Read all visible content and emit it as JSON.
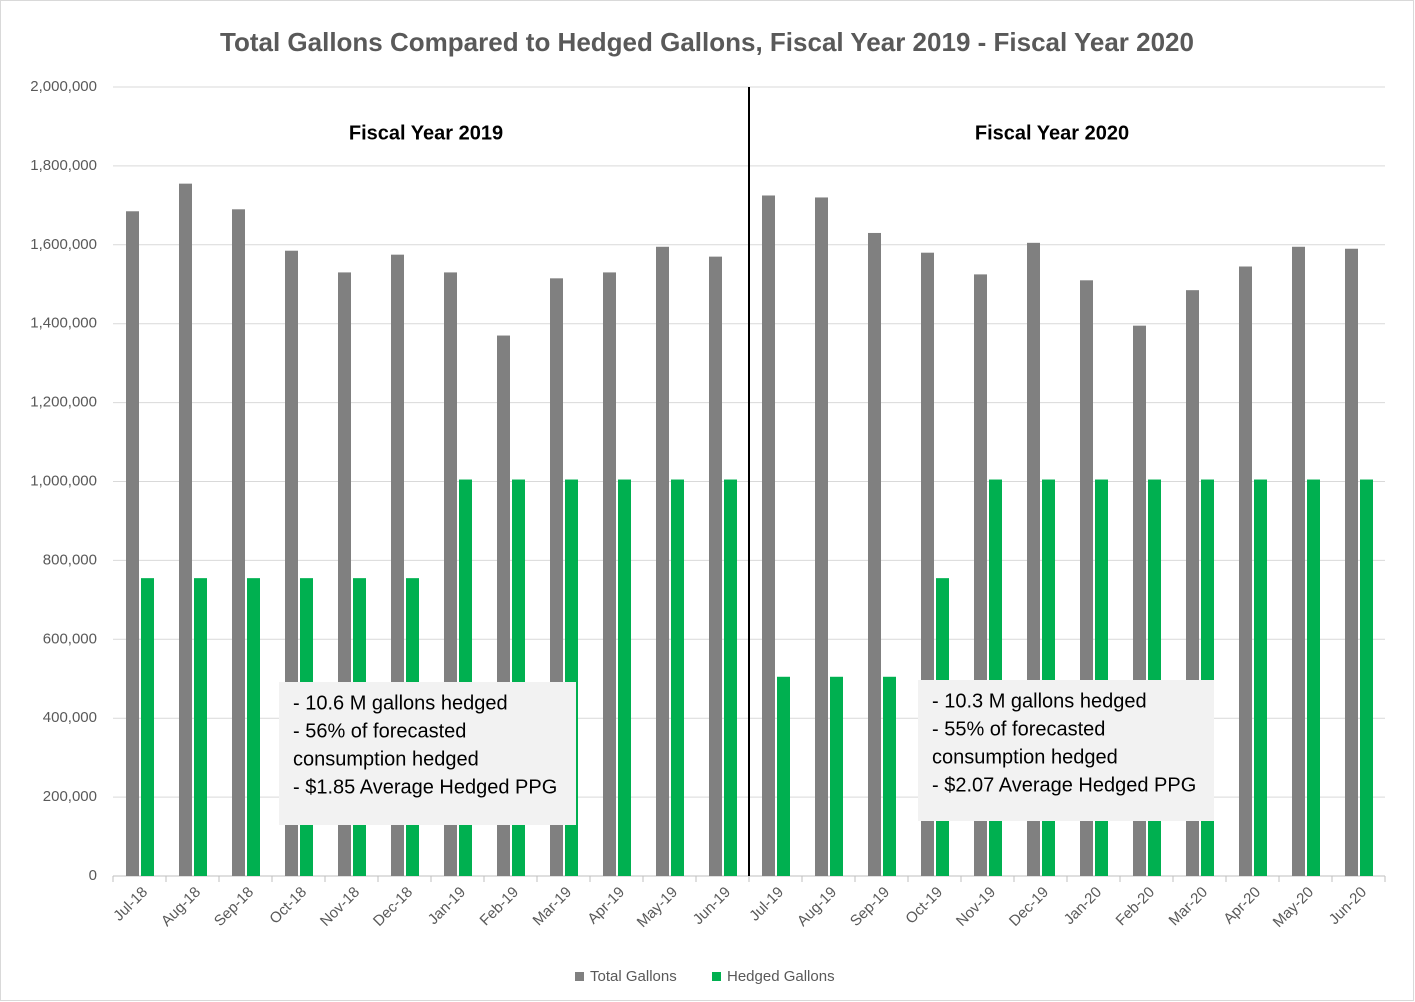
{
  "chart_data": {
    "type": "bar",
    "title": "Total Gallons Compared to Hedged Gallons, Fiscal Year 2019 - Fiscal Year 2020",
    "categories": [
      "Jul-18",
      "Aug-18",
      "Sep-18",
      "Oct-18",
      "Nov-18",
      "Dec-18",
      "Jan-19",
      "Feb-19",
      "Mar-19",
      "Apr-19",
      "May-19",
      "Jun-19",
      "Jul-19",
      "Aug-19",
      "Sep-19",
      "Oct-19",
      "Nov-19",
      "Dec-19",
      "Jan-20",
      "Feb-20",
      "Mar-20",
      "Apr-20",
      "May-20",
      "Jun-20"
    ],
    "series": [
      {
        "name": "Total Gallons",
        "color": "#808080",
        "values": [
          1685000,
          1755000,
          1690000,
          1585000,
          1530000,
          1575000,
          1530000,
          1370000,
          1515000,
          1530000,
          1595000,
          1570000,
          1725000,
          1720000,
          1630000,
          1580000,
          1525000,
          1605000,
          1510000,
          1395000,
          1485000,
          1545000,
          1595000,
          1590000
        ]
      },
      {
        "name": "Hedged Gallons",
        "color": "#00b050",
        "values": [
          755000,
          755000,
          755000,
          755000,
          755000,
          755000,
          1005000,
          1005000,
          1005000,
          1005000,
          1005000,
          1005000,
          505000,
          505000,
          505000,
          755000,
          1005000,
          1005000,
          1005000,
          1005000,
          1005000,
          1005000,
          1005000,
          1005000
        ]
      }
    ],
    "ylim": [
      0,
      2000000
    ],
    "yticks": [
      0,
      {
        "value": 200000,
        "label": "200,000"
      },
      {
        "value": 400000,
        "label": "400,000"
      },
      {
        "value": 600000,
        "label": "600,000"
      },
      {
        "value": 800000,
        "label": "800,000"
      },
      {
        "value": 1000000,
        "label": "1,000,000"
      },
      {
        "value": 1200000,
        "label": "1,200,000"
      },
      {
        "value": 1400000,
        "label": "1,400,000"
      },
      {
        "value": 1600000,
        "label": "1,600,000"
      },
      {
        "value": 1800000,
        "label": "1,800,000"
      },
      {
        "value": 2000000,
        "label": "2,000,000"
      }
    ],
    "grid": true,
    "legend": "bottom",
    "section_labels": [
      "Fiscal Year 2019",
      "Fiscal Year 2020"
    ],
    "annotations": [
      {
        "lines": [
          "- 10.6 M gallons hedged",
          "- 56% of forecasted",
          "consumption hedged",
          "- $1.85 Average Hedged PPG"
        ]
      },
      {
        "lines": [
          "- 10.3 M gallons hedged",
          "- 55% of forecasted",
          "consumption hedged",
          "- $2.07 Average Hedged PPG"
        ]
      }
    ]
  }
}
